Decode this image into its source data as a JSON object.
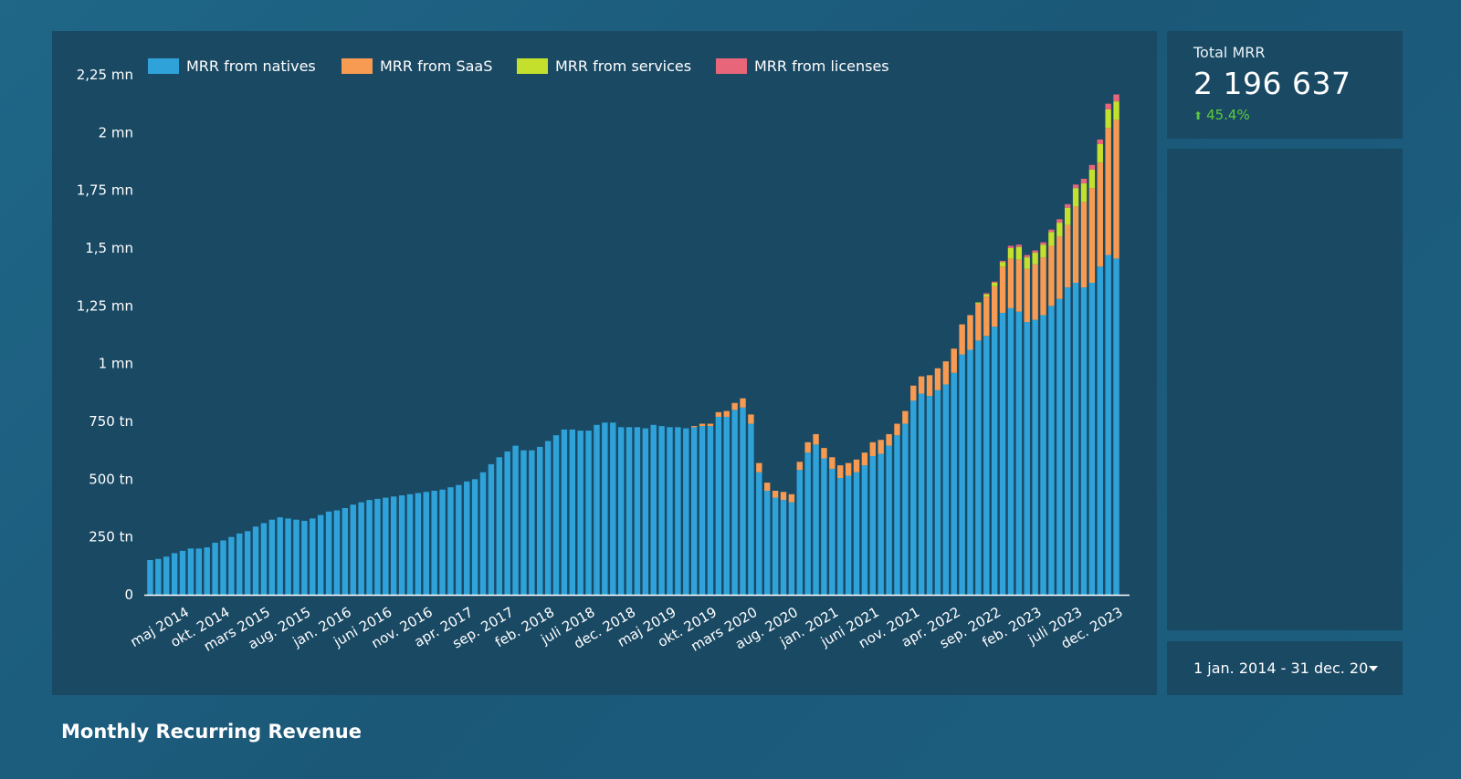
{
  "page": {
    "title": "Monthly Recurring Revenue"
  },
  "summary": {
    "label": "Total MRR",
    "value": "2 196 637",
    "change": "45.4%",
    "change_direction": "up",
    "change_color": "#5ccb3c"
  },
  "date_range": {
    "label": "1 jan. 2014 - 31 dec. 20",
    "icon": "caret-down-icon"
  },
  "chart_data": {
    "type": "bar",
    "stacked": true,
    "title": "",
    "xlabel": "",
    "ylabel": "",
    "ylim": [
      0,
      2250000
    ],
    "grid": false,
    "legend_position": "top-left",
    "y_ticks": [
      {
        "value": 0,
        "label": "0"
      },
      {
        "value": 250000,
        "label": "250 tn"
      },
      {
        "value": 500000,
        "label": "500 tn"
      },
      {
        "value": 750000,
        "label": "750 tn"
      },
      {
        "value": 1000000,
        "label": "1 mn"
      },
      {
        "value": 1250000,
        "label": "1,25 mn"
      },
      {
        "value": 1500000,
        "label": "1,5 mn"
      },
      {
        "value": 1750000,
        "label": "1,75 mn"
      },
      {
        "value": 2000000,
        "label": "2 mn"
      },
      {
        "value": 2250000,
        "label": "2,25 mn"
      }
    ],
    "x_start": "2014-01",
    "x_ticks": [
      {
        "month": "2014-05",
        "label": "maj 2014"
      },
      {
        "month": "2014-10",
        "label": "okt. 2014"
      },
      {
        "month": "2015-03",
        "label": "mars 2015"
      },
      {
        "month": "2015-08",
        "label": "aug. 2015"
      },
      {
        "month": "2016-01",
        "label": "jan. 2016"
      },
      {
        "month": "2016-06",
        "label": "juni 2016"
      },
      {
        "month": "2016-11",
        "label": "nov. 2016"
      },
      {
        "month": "2017-04",
        "label": "apr. 2017"
      },
      {
        "month": "2017-09",
        "label": "sep. 2017"
      },
      {
        "month": "2018-02",
        "label": "feb. 2018"
      },
      {
        "month": "2018-07",
        "label": "juli 2018"
      },
      {
        "month": "2018-12",
        "label": "dec. 2018"
      },
      {
        "month": "2019-05",
        "label": "maj 2019"
      },
      {
        "month": "2019-10",
        "label": "okt. 2019"
      },
      {
        "month": "2020-03",
        "label": "mars 2020"
      },
      {
        "month": "2020-08",
        "label": "aug. 2020"
      },
      {
        "month": "2021-01",
        "label": "jan. 2021"
      },
      {
        "month": "2021-06",
        "label": "juni 2021"
      },
      {
        "month": "2021-11",
        "label": "nov. 2021"
      },
      {
        "month": "2022-04",
        "label": "apr. 2022"
      },
      {
        "month": "2022-09",
        "label": "sep. 2022"
      },
      {
        "month": "2023-02",
        "label": "feb. 2023"
      },
      {
        "month": "2023-07",
        "label": "juli 2023"
      },
      {
        "month": "2023-12",
        "label": "dec. 2023"
      }
    ],
    "series": [
      {
        "name": "MRR from natives",
        "color": "#2fa3d9",
        "values": [
          150000,
          155000,
          165000,
          180000,
          190000,
          200000,
          200000,
          205000,
          225000,
          235000,
          250000,
          265000,
          275000,
          295000,
          310000,
          325000,
          335000,
          330000,
          325000,
          320000,
          330000,
          345000,
          360000,
          365000,
          375000,
          390000,
          400000,
          410000,
          415000,
          420000,
          425000,
          430000,
          435000,
          440000,
          445000,
          450000,
          455000,
          465000,
          475000,
          490000,
          500000,
          530000,
          565000,
          595000,
          620000,
          645000,
          625000,
          625000,
          640000,
          665000,
          690000,
          715000,
          715000,
          710000,
          710000,
          735000,
          745000,
          745000,
          725000,
          725000,
          725000,
          720000,
          735000,
          730000,
          725000,
          725000,
          720000,
          725000,
          730000,
          730000,
          770000,
          770000,
          800000,
          810000,
          740000,
          530000,
          450000,
          420000,
          410000,
          400000,
          540000,
          615000,
          650000,
          590000,
          545000,
          505000,
          515000,
          530000,
          560000,
          600000,
          610000,
          645000,
          690000,
          740000,
          840000,
          870000,
          860000,
          885000,
          910000,
          960000,
          1040000,
          1060000,
          1100000,
          1120000,
          1160000,
          1220000,
          1240000,
          1225000,
          1180000,
          1190000,
          1210000,
          1250000,
          1280000,
          1330000,
          1350000,
          1330000,
          1350000,
          1420000,
          1470000,
          1455000
        ],
        "_comment": ""
      },
      {
        "name": "MRR from SaaS",
        "color": "#f79a52",
        "values": [
          0,
          0,
          0,
          0,
          0,
          0,
          0,
          0,
          0,
          0,
          0,
          0,
          0,
          0,
          0,
          0,
          0,
          0,
          0,
          0,
          0,
          0,
          0,
          0,
          0,
          0,
          0,
          0,
          0,
          0,
          0,
          0,
          0,
          0,
          0,
          0,
          0,
          0,
          0,
          0,
          0,
          0,
          0,
          0,
          0,
          0,
          0,
          0,
          0,
          0,
          0,
          0,
          0,
          0,
          0,
          0,
          0,
          0,
          0,
          0,
          0,
          0,
          0,
          0,
          0,
          0,
          0,
          5000,
          10000,
          10000,
          20000,
          25000,
          30000,
          40000,
          40000,
          40000,
          35000,
          30000,
          35000,
          35000,
          35000,
          45000,
          45000,
          45000,
          50000,
          55000,
          55000,
          55000,
          55000,
          60000,
          60000,
          50000,
          50000,
          55000,
          65000,
          75000,
          90000,
          95000,
          100000,
          105000,
          130000,
          150000,
          160000,
          170000,
          175000,
          200000,
          215000,
          225000,
          230000,
          240000,
          250000,
          260000,
          270000,
          270000,
          330000,
          370000,
          410000,
          450000,
          550000,
          600000
        ]
      },
      {
        "name": "MRR from services",
        "color": "#c4e02c",
        "values": [
          0,
          0,
          0,
          0,
          0,
          0,
          0,
          0,
          0,
          0,
          0,
          0,
          0,
          0,
          0,
          0,
          0,
          0,
          0,
          0,
          0,
          0,
          0,
          0,
          0,
          0,
          0,
          0,
          0,
          0,
          0,
          0,
          0,
          0,
          0,
          0,
          0,
          0,
          0,
          0,
          0,
          0,
          0,
          0,
          0,
          0,
          0,
          0,
          0,
          0,
          0,
          0,
          0,
          0,
          0,
          0,
          0,
          0,
          0,
          0,
          0,
          0,
          0,
          0,
          0,
          0,
          0,
          0,
          0,
          0,
          0,
          0,
          0,
          0,
          0,
          0,
          0,
          0,
          0,
          0,
          0,
          0,
          0,
          0,
          0,
          0,
          0,
          0,
          0,
          0,
          0,
          0,
          0,
          0,
          0,
          0,
          0,
          0,
          0,
          0,
          0,
          0,
          5000,
          10000,
          15000,
          20000,
          45000,
          55000,
          50000,
          50000,
          55000,
          60000,
          60000,
          75000,
          80000,
          80000,
          80000,
          80000,
          80000,
          80000
        ]
      },
      {
        "name": "MRR from licenses",
        "color": "#e8667a",
        "values": [
          0,
          0,
          0,
          0,
          0,
          0,
          0,
          0,
          0,
          0,
          0,
          0,
          0,
          0,
          0,
          0,
          0,
          0,
          0,
          0,
          0,
          0,
          0,
          0,
          0,
          0,
          0,
          0,
          0,
          0,
          0,
          0,
          0,
          0,
          0,
          0,
          0,
          0,
          0,
          0,
          0,
          0,
          0,
          0,
          0,
          0,
          0,
          0,
          0,
          0,
          0,
          0,
          0,
          0,
          0,
          0,
          0,
          0,
          0,
          0,
          0,
          0,
          0,
          0,
          0,
          0,
          0,
          0,
          0,
          0,
          0,
          0,
          0,
          0,
          0,
          0,
          0,
          0,
          0,
          0,
          0,
          0,
          0,
          0,
          0,
          0,
          0,
          0,
          0,
          0,
          0,
          0,
          0,
          0,
          0,
          0,
          0,
          0,
          0,
          0,
          0,
          0,
          0,
          5000,
          5000,
          5000,
          10000,
          10000,
          10000,
          10000,
          10000,
          10000,
          15000,
          15000,
          15000,
          20000,
          20000,
          20000,
          25000,
          30000
        ]
      }
    ]
  }
}
